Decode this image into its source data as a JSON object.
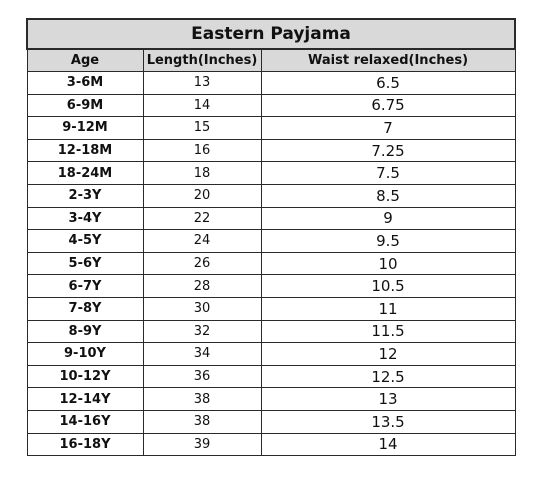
{
  "table": {
    "title": "Eastern Payjama",
    "headers": [
      "Age",
      "Length(Inches)",
      "Waist relaxed(Inches)"
    ],
    "rows": [
      {
        "age": "3-6M",
        "length": "13",
        "waist": "6.5"
      },
      {
        "age": "6-9M",
        "length": "14",
        "waist": "6.75"
      },
      {
        "age": "9-12M",
        "length": "15",
        "waist": "7"
      },
      {
        "age": "12-18M",
        "length": "16",
        "waist": "7.25"
      },
      {
        "age": "18-24M",
        "length": "18",
        "waist": "7.5"
      },
      {
        "age": "2-3Y",
        "length": "20",
        "waist": "8.5"
      },
      {
        "age": "3-4Y",
        "length": "22",
        "waist": "9"
      },
      {
        "age": "4-5Y",
        "length": "24",
        "waist": "9.5"
      },
      {
        "age": "5-6Y",
        "length": "26",
        "waist": "10"
      },
      {
        "age": "6-7Y",
        "length": "28",
        "waist": "10.5"
      },
      {
        "age": "7-8Y",
        "length": "30",
        "waist": "11"
      },
      {
        "age": "8-9Y",
        "length": "32",
        "waist": "11.5"
      },
      {
        "age": "9-10Y",
        "length": "34",
        "waist": "12"
      },
      {
        "age": "10-12Y",
        "length": "36",
        "waist": "12.5"
      },
      {
        "age": "12-14Y",
        "length": "38",
        "waist": "13"
      },
      {
        "age": "14-16Y",
        "length": "38",
        "waist": "13.5"
      },
      {
        "age": "16-18Y",
        "length": "39",
        "waist": "14"
      }
    ],
    "colors": {
      "header_bg": "#d9d9d9",
      "border": "#2a2a2a",
      "text": "#111111"
    }
  }
}
